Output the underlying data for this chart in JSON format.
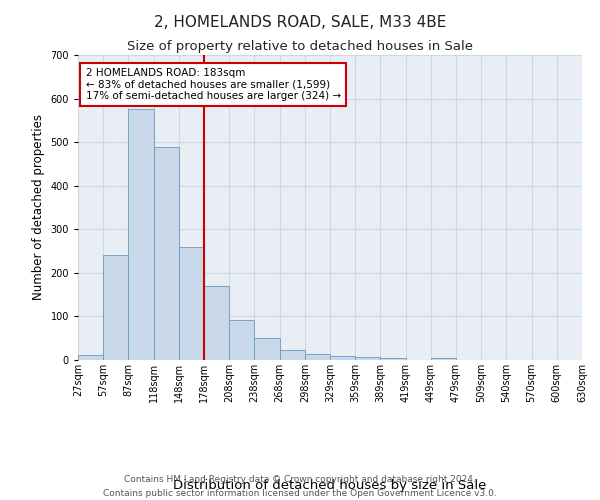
{
  "title": "2, HOMELANDS ROAD, SALE, M33 4BE",
  "subtitle": "Size of property relative to detached houses in Sale",
  "xlabel": "Distribution of detached houses by size in Sale",
  "ylabel": "Number of detached properties",
  "bins": [
    "27sqm",
    "57sqm",
    "87sqm",
    "118sqm",
    "148sqm",
    "178sqm",
    "208sqm",
    "238sqm",
    "268sqm",
    "298sqm",
    "329sqm",
    "359sqm",
    "389sqm",
    "419sqm",
    "449sqm",
    "479sqm",
    "509sqm",
    "540sqm",
    "570sqm",
    "600sqm",
    "630sqm"
  ],
  "values": [
    11,
    240,
    575,
    490,
    260,
    170,
    91,
    50,
    24,
    14,
    10,
    7,
    5,
    0,
    5,
    0,
    0,
    0,
    0,
    0
  ],
  "bar_color": "#c8d8e8",
  "bar_edge_color": "#6a9abf",
  "vline_x_index": 5,
  "vline_color": "#cc0000",
  "annotation_text": "2 HOMELANDS ROAD: 183sqm\n← 83% of detached houses are smaller (1,599)\n17% of semi-detached houses are larger (324) →",
  "annotation_box_color": "#cc0000",
  "footer": "Contains HM Land Registry data © Crown copyright and database right 2024.\nContains public sector information licensed under the Open Government Licence v3.0.",
  "ylim": [
    0,
    700
  ],
  "yticks": [
    0,
    100,
    200,
    300,
    400,
    500,
    600,
    700
  ],
  "title_fontsize": 11,
  "subtitle_fontsize": 9.5,
  "xlabel_fontsize": 9.5,
  "ylabel_fontsize": 8.5,
  "tick_fontsize": 7,
  "annotation_fontsize": 7.5,
  "footer_fontsize": 6.5,
  "background_color": "#ffffff",
  "grid_color": "#ccd8e4",
  "axes_bg_color": "#e8eef4"
}
